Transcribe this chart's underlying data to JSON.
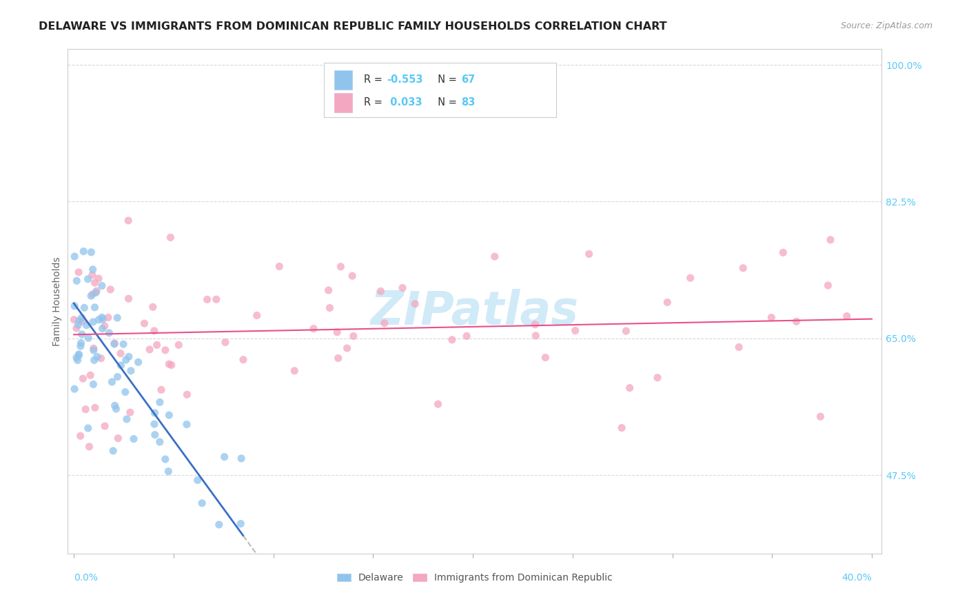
{
  "title": "DELAWARE VS IMMIGRANTS FROM DOMINICAN REPUBLIC FAMILY HOUSEHOLDS CORRELATION CHART",
  "source": "Source: ZipAtlas.com",
  "ylabel": "Family Households",
  "right_ytick_vals": [
    1.0,
    0.825,
    0.65,
    0.475
  ],
  "right_ytick_labels": [
    "100.0%",
    "82.5%",
    "65.0%",
    "47.5%"
  ],
  "bottom_right_label": "40.0%",
  "bottom_left_label": "0.0%",
  "color_delaware": "#91C4ED",
  "color_dr": "#F4A7C0",
  "color_line_delaware": "#3A6FC4",
  "color_line_dr": "#E84F8C",
  "background_color": "#FFFFFF",
  "grid_color": "#D8D8D8",
  "axis_label_color": "#5BC8F5",
  "watermark_color": "#D0EAF8",
  "r1_val": "-0.553",
  "n1_val": "67",
  "r2_val": "0.033",
  "n2_val": "83",
  "xmin": 0.0,
  "xmax": 0.4,
  "ymin": 0.375,
  "ymax": 1.02
}
